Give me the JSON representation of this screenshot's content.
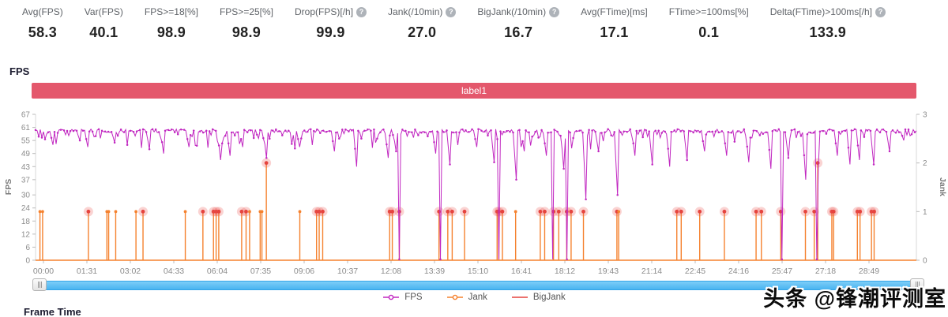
{
  "metrics": [
    {
      "label": "Avg(FPS)",
      "value": "58.3",
      "help": false
    },
    {
      "label": "Var(FPS)",
      "value": "40.1",
      "help": false
    },
    {
      "label": "FPS>=18[%]",
      "value": "98.9",
      "help": false
    },
    {
      "label": "FPS>=25[%]",
      "value": "98.9",
      "help": false
    },
    {
      "label": "Drop(FPS)[/h]",
      "value": "99.9",
      "help": true
    },
    {
      "label": "Jank(/10min)",
      "value": "27.0",
      "help": true
    },
    {
      "label": "BigJank(/10min)",
      "value": "16.7",
      "help": true
    },
    {
      "label": "Avg(FTime)[ms]",
      "value": "17.1",
      "help": false
    },
    {
      "label": "FTime>=100ms[%]",
      "value": "0.1",
      "help": false
    },
    {
      "label": "Delta(FTime)>100ms[/h]",
      "value": "133.9",
      "help": true
    }
  ],
  "sections": {
    "fps_title": "FPS",
    "frame_time_title": "Frame Time"
  },
  "banner": {
    "label": "label1",
    "color": "#e4586c"
  },
  "watermark": "头条 @锋潮评测室",
  "ui_colors": {
    "scrollbar_blue": "#49b4f0",
    "axis_text": "#8c8c8c"
  },
  "chart_data": {
    "type": "line",
    "title": "label1",
    "x_ticks": [
      "00:00",
      "01:31",
      "03:02",
      "04:33",
      "06:04",
      "07:35",
      "09:06",
      "10:37",
      "12:08",
      "13:39",
      "15:10",
      "16:41",
      "18:12",
      "19:43",
      "21:14",
      "22:45",
      "24:16",
      "25:47",
      "27:18",
      "28:49"
    ],
    "left_axis": {
      "label": "FPS",
      "ticks": [
        67,
        61,
        55,
        49,
        43,
        37,
        30,
        24,
        18,
        12,
        6,
        0
      ],
      "range": [
        0,
        67
      ]
    },
    "right_axis": {
      "label": "Jank",
      "ticks": [
        3,
        2,
        1,
        0
      ],
      "range": [
        0,
        3
      ]
    },
    "grid": false,
    "legend_position": "bottom",
    "series": [
      {
        "name": "FPS",
        "color": "#c128c1",
        "marker": "dot",
        "baseline": 59.4,
        "dips": [
          [
            0.02,
            53
          ],
          [
            0.05,
            55
          ],
          [
            0.06,
            52
          ],
          [
            0.09,
            54
          ],
          [
            0.13,
            51
          ],
          [
            0.145,
            49
          ],
          [
            0.175,
            52
          ],
          [
            0.21,
            46
          ],
          [
            0.22,
            48
          ],
          [
            0.235,
            52
          ],
          [
            0.262,
            47
          ],
          [
            0.3,
            52
          ],
          [
            0.34,
            50
          ],
          [
            0.365,
            43
          ],
          [
            0.4,
            47
          ],
          [
            0.41,
            50
          ],
          [
            0.455,
            49
          ],
          [
            0.47,
            44
          ],
          [
            0.5,
            52
          ],
          [
            0.52,
            45
          ],
          [
            0.545,
            37
          ],
          [
            0.555,
            50
          ],
          [
            0.58,
            48
          ],
          [
            0.6,
            42
          ],
          [
            0.625,
            28
          ],
          [
            0.64,
            50
          ],
          [
            0.66,
            30
          ],
          [
            0.68,
            48
          ],
          [
            0.7,
            44
          ],
          [
            0.72,
            43
          ],
          [
            0.74,
            46
          ],
          [
            0.76,
            50
          ],
          [
            0.785,
            48
          ],
          [
            0.81,
            45
          ],
          [
            0.835,
            42
          ],
          [
            0.855,
            47
          ],
          [
            0.875,
            37
          ],
          [
            0.888,
            43
          ],
          [
            0.91,
            48
          ],
          [
            0.925,
            44
          ],
          [
            0.935,
            46
          ],
          [
            0.952,
            44
          ],
          [
            0.97,
            50
          ],
          [
            0.985,
            55
          ]
        ],
        "deep_drops": [
          0.413,
          0.459,
          0.526,
          0.587,
          0.604,
          0.848,
          0.886
        ]
      },
      {
        "name": "Jank",
        "color": "#f5822f",
        "marker": "dot",
        "spikes": [
          [
            0.005,
            1,
            0
          ],
          [
            0.008,
            1,
            0
          ],
          [
            0.06,
            1,
            1
          ],
          [
            0.081,
            1,
            0
          ],
          [
            0.083,
            1,
            0
          ],
          [
            0.091,
            1,
            0
          ],
          [
            0.114,
            1,
            0
          ],
          [
            0.122,
            1,
            1
          ],
          [
            0.17,
            1,
            0
          ],
          [
            0.19,
            1,
            1
          ],
          [
            0.202,
            1,
            1
          ],
          [
            0.205,
            1,
            1
          ],
          [
            0.208,
            1,
            1
          ],
          [
            0.234,
            1,
            1
          ],
          [
            0.239,
            1,
            1
          ],
          [
            0.243,
            1,
            0
          ],
          [
            0.255,
            1,
            0
          ],
          [
            0.257,
            1,
            0
          ],
          [
            0.262,
            2,
            1
          ],
          [
            0.3,
            1,
            0
          ],
          [
            0.319,
            1,
            1
          ],
          [
            0.322,
            1,
            1
          ],
          [
            0.326,
            1,
            1
          ],
          [
            0.402,
            1,
            1
          ],
          [
            0.405,
            1,
            1
          ],
          [
            0.413,
            1,
            1
          ],
          [
            0.458,
            1,
            1
          ],
          [
            0.468,
            1,
            1
          ],
          [
            0.473,
            1,
            1
          ],
          [
            0.487,
            1,
            1
          ],
          [
            0.524,
            1,
            1
          ],
          [
            0.526,
            1,
            1
          ],
          [
            0.53,
            1,
            1
          ],
          [
            0.545,
            1,
            0
          ],
          [
            0.573,
            1,
            1
          ],
          [
            0.578,
            1,
            1
          ],
          [
            0.588,
            1,
            1
          ],
          [
            0.594,
            1,
            1
          ],
          [
            0.603,
            1,
            1
          ],
          [
            0.608,
            1,
            1
          ],
          [
            0.622,
            1,
            1
          ],
          [
            0.66,
            1,
            1
          ],
          [
            0.662,
            1,
            0
          ],
          [
            0.728,
            1,
            1
          ],
          [
            0.733,
            1,
            1
          ],
          [
            0.754,
            1,
            1
          ],
          [
            0.782,
            1,
            1
          ],
          [
            0.818,
            1,
            1
          ],
          [
            0.824,
            1,
            1
          ],
          [
            0.846,
            1,
            1
          ],
          [
            0.874,
            1,
            1
          ],
          [
            0.884,
            1,
            1
          ],
          [
            0.888,
            2,
            1
          ],
          [
            0.904,
            1,
            1
          ],
          [
            0.906,
            1,
            1
          ],
          [
            0.933,
            1,
            1
          ],
          [
            0.936,
            1,
            1
          ],
          [
            0.949,
            1,
            1
          ],
          [
            0.952,
            1,
            1
          ]
        ]
      },
      {
        "name": "BigJank",
        "color": "#e5443f",
        "marker": "line"
      }
    ],
    "legend": [
      {
        "label": "FPS",
        "color": "#c128c1",
        "marker": "line-dot"
      },
      {
        "label": "Jank",
        "color": "#f5822f",
        "marker": "line-dot"
      },
      {
        "label": "BigJank",
        "color": "#e5443f",
        "marker": "line"
      }
    ]
  }
}
